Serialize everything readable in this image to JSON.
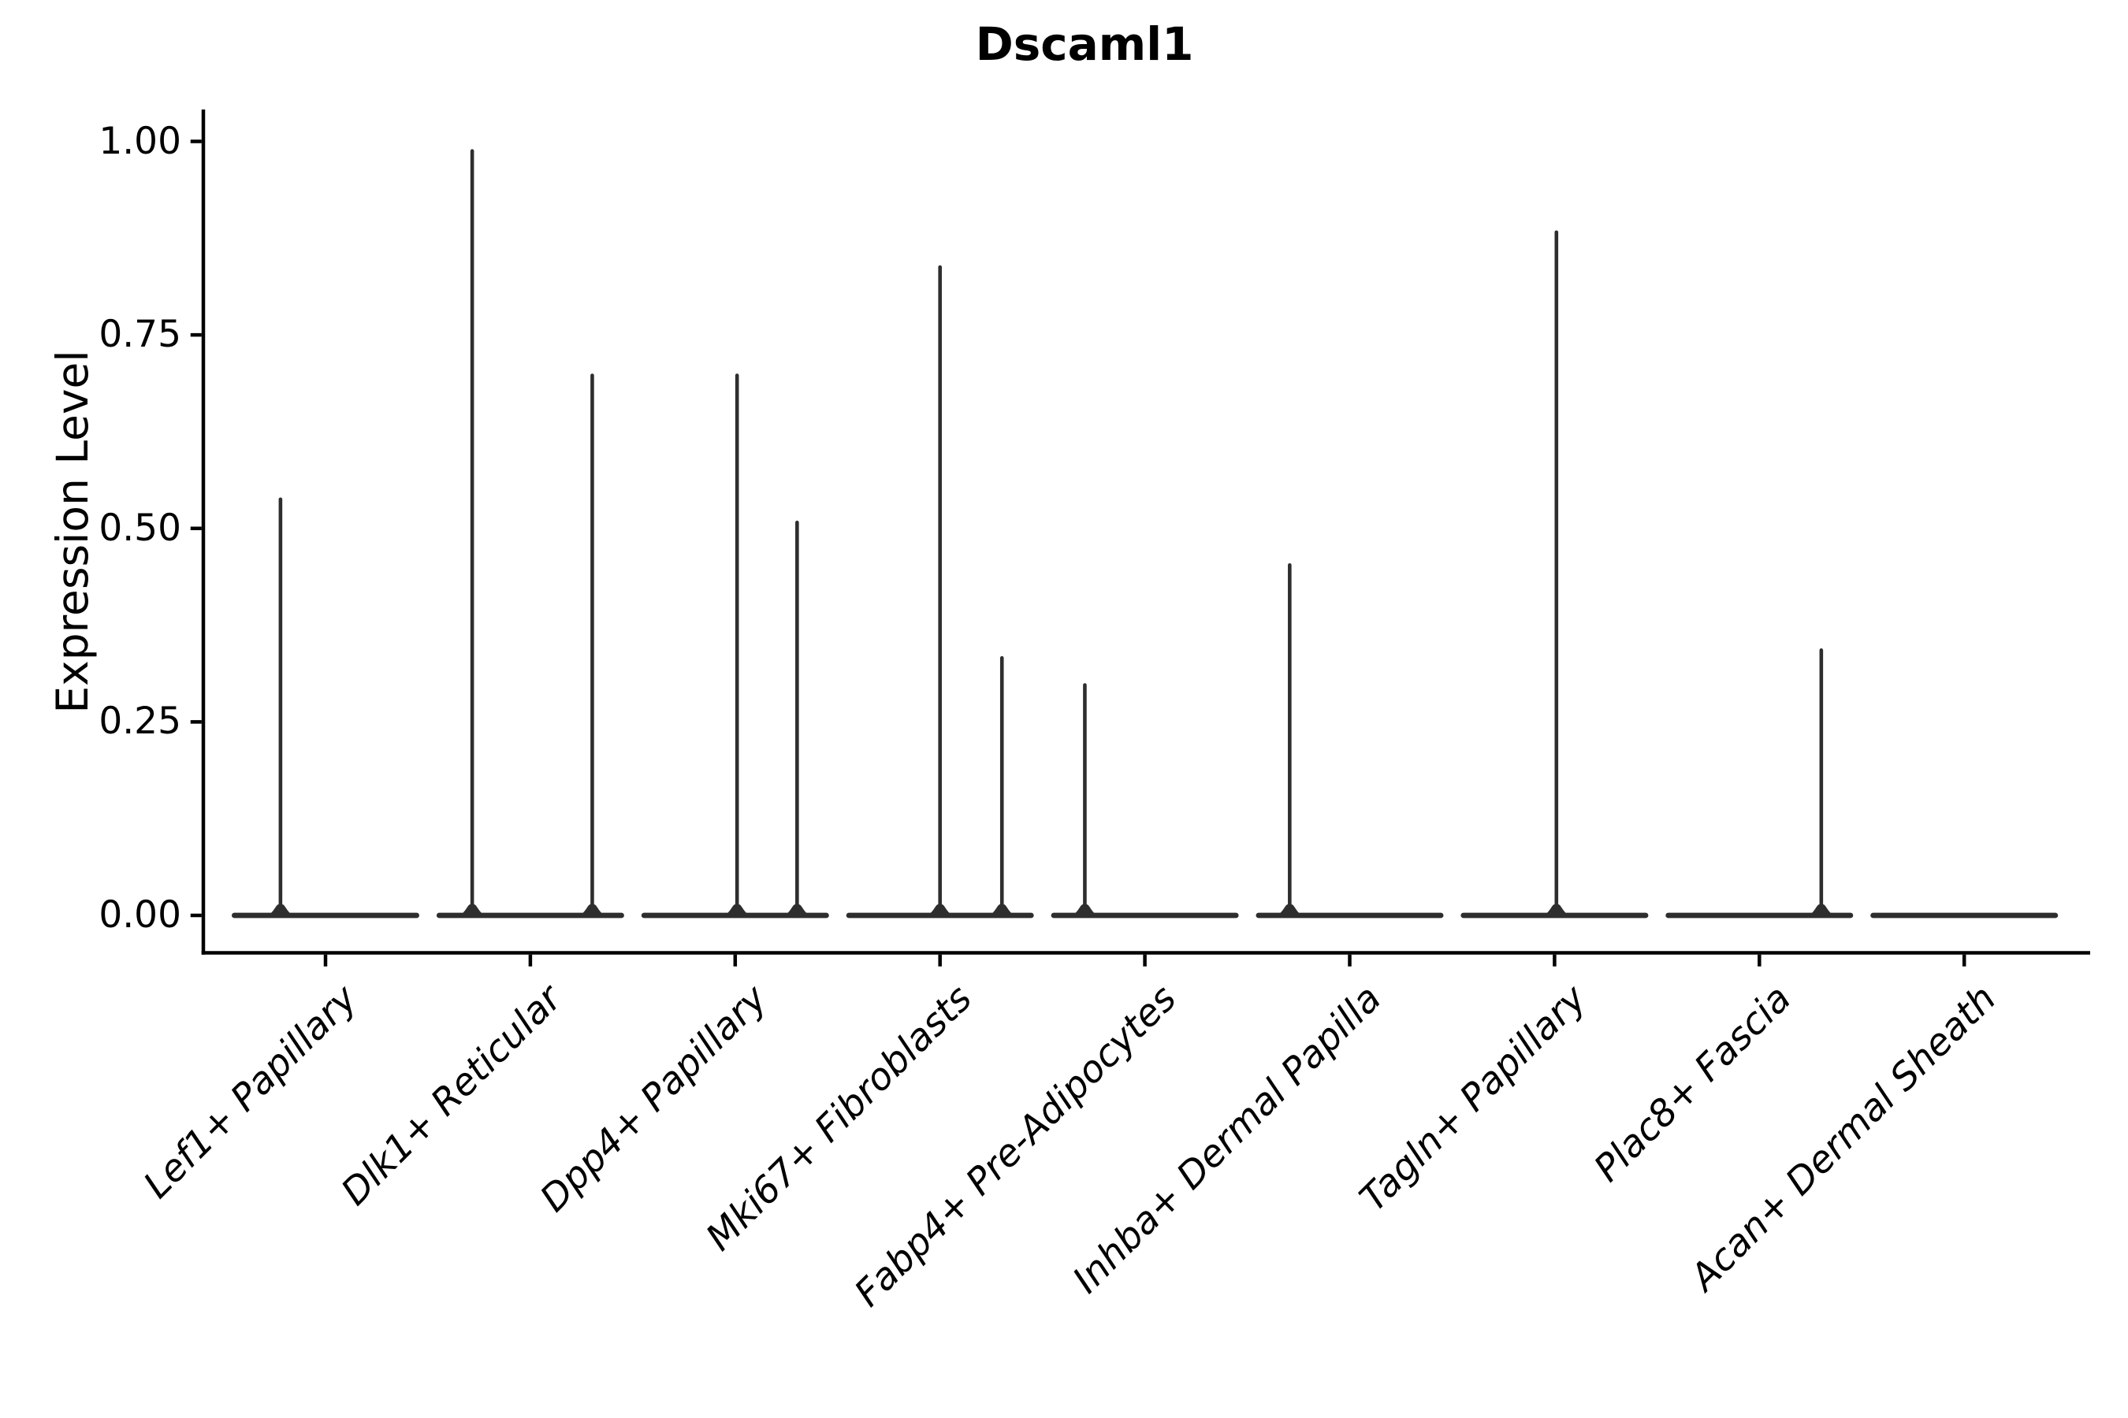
{
  "chart_data": {
    "type": "violin",
    "title": "Dscaml1",
    "ylabel": "Expression Level",
    "xlabel": "",
    "grid": false,
    "legend": "none",
    "ylim": [
      -0.049,
      1.041
    ],
    "yticks": [
      0,
      0.25,
      0.5,
      0.75,
      1.0
    ],
    "ytick_labels": [
      "0.00",
      "0.25",
      "0.50",
      "0.75",
      "1.00"
    ],
    "categories": [
      "Lef1+ Papillary",
      "Dlk1+ Reticular",
      "Dpp4+ Papillary",
      "Mki67+ Fibroblasts",
      "Fabp4+ Pre-Adipocytes",
      "Inhba+ Dermal Papilla",
      "Tagln+ Papillary",
      "Plac8+ Fascia",
      "Acan+ Dermal Sheath"
    ],
    "series": [
      {
        "category": "Lef1+ Papillary",
        "baseline_value": 0,
        "peaks": [
          {
            "pos": 0.26,
            "value": 0.54
          }
        ]
      },
      {
        "category": "Dlk1+ Reticular",
        "baseline_value": 0,
        "peaks": [
          {
            "pos": 0.19,
            "value": 0.99
          },
          {
            "pos": 0.83,
            "value": 0.7
          }
        ]
      },
      {
        "category": "Dpp4+ Papillary",
        "baseline_value": 0,
        "peaks": [
          {
            "pos": 0.51,
            "value": 0.7
          },
          {
            "pos": 0.83,
            "value": 0.51
          }
        ]
      },
      {
        "category": "Mki67+ Fibroblasts",
        "baseline_value": 0,
        "peaks": [
          {
            "pos": 0.5,
            "value": 0.84
          },
          {
            "pos": 0.83,
            "value": 0.335
          }
        ]
      },
      {
        "category": "Fabp4+ Pre-Adipocytes",
        "baseline_value": 0,
        "peaks": [
          {
            "pos": 0.18,
            "value": 0.3
          }
        ]
      },
      {
        "category": "Inhba+ Dermal Papilla",
        "baseline_value": 0,
        "peaks": [
          {
            "pos": 0.18,
            "value": 0.455
          }
        ]
      },
      {
        "category": "Tagln+ Papillary",
        "baseline_value": 0,
        "peaks": [
          {
            "pos": 0.51,
            "value": 0.885
          }
        ]
      },
      {
        "category": "Plac8+ Fascia",
        "baseline_value": 0,
        "peaks": [
          {
            "pos": 0.83,
            "value": 0.345
          }
        ]
      },
      {
        "category": "Acan+ Dermal Sheath",
        "baseline_value": 0,
        "peaks": []
      }
    ],
    "colors": {
      "violin": "#2e2e2e",
      "axis": "#000000",
      "text": "#000000",
      "background": "#ffffff"
    }
  }
}
